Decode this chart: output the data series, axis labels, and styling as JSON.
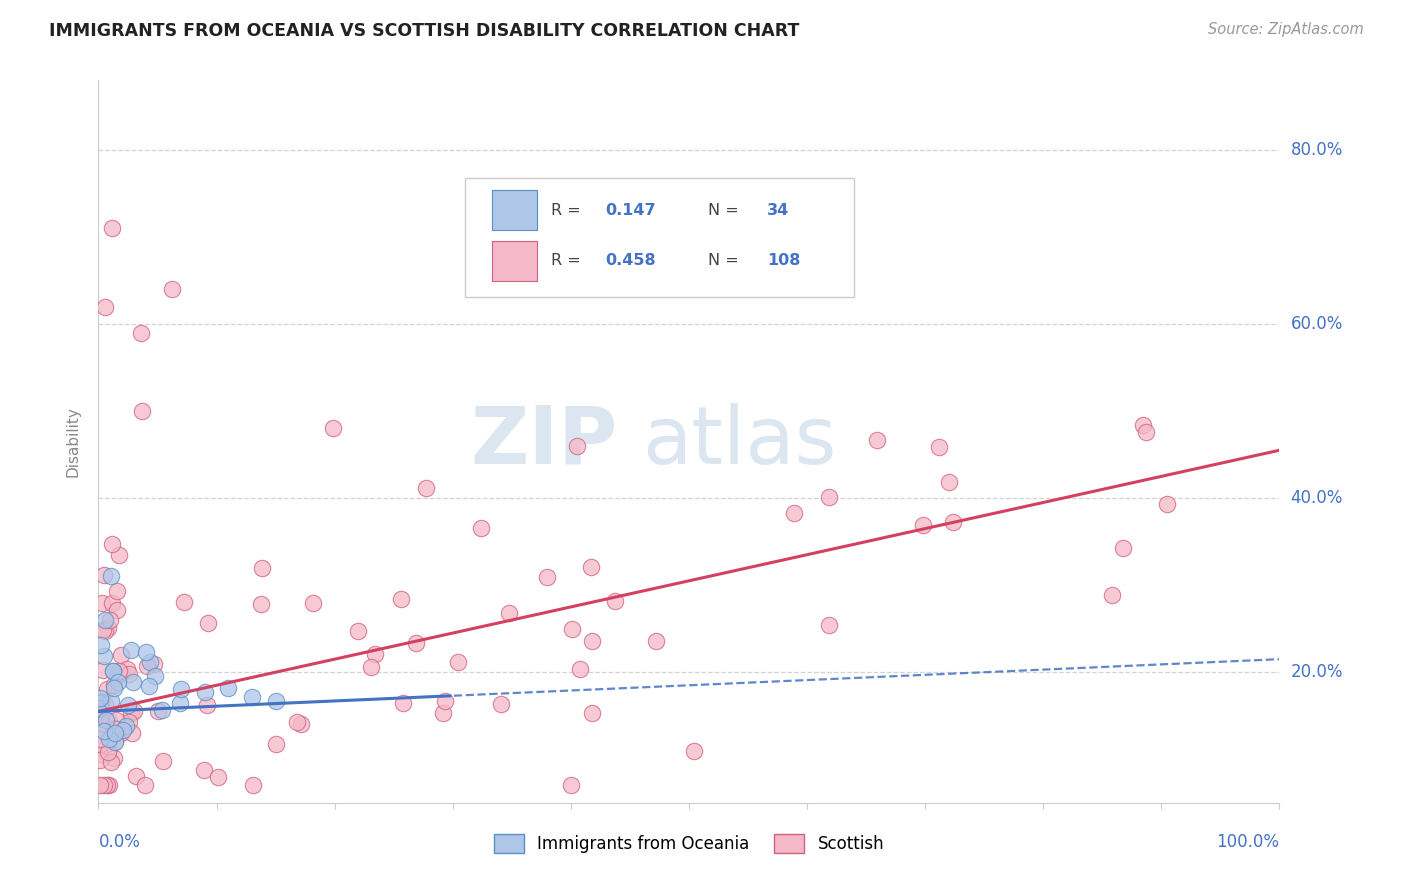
{
  "title": "IMMIGRANTS FROM OCEANIA VS SCOTTISH DISABILITY CORRELATION CHART",
  "source": "Source: ZipAtlas.com",
  "ylabel": "Disability",
  "y_ticks": [
    0.2,
    0.4,
    0.6,
    0.8
  ],
  "y_tick_labels": [
    "20.0%",
    "40.0%",
    "60.0%",
    "80.0%"
  ],
  "x_range": [
    0.0,
    1.0
  ],
  "y_range": [
    0.05,
    0.88
  ],
  "series1_label": "Immigrants from Oceania",
  "series1_R": 0.147,
  "series1_N": 34,
  "series1_color": "#aec6e8",
  "series1_edge_color": "#5b8ec4",
  "series1_line_color": "#4472c4",
  "series2_label": "Scottish",
  "series2_R": 0.458,
  "series2_N": 108,
  "series2_color": "#f4b8c8",
  "series2_edge_color": "#d06080",
  "series2_line_color": "#d44060",
  "background_color": "#ffffff",
  "watermark_zip": "ZIP",
  "watermark_atlas": "atlas",
  "watermark_color": "#dce6f0",
  "grid_color": "#c8c8c8",
  "title_color": "#222222",
  "axis_label_color": "#4472c4",
  "blue_line_solid_end": 0.3,
  "pink_line_start_y": 0.155,
  "pink_line_end_y": 0.455,
  "blue_line_start_y": 0.155,
  "blue_line_end_y": 0.215
}
